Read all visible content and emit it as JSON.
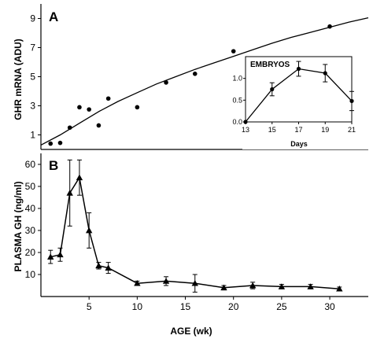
{
  "chart_data": [
    {
      "type": "scatter",
      "panel": "A",
      "ylabel": "GHR mRNA (ADU)",
      "xlim": [
        0,
        34
      ],
      "ylim": [
        0,
        10
      ],
      "yticks": [
        1,
        3,
        5,
        7,
        9
      ],
      "xticks": [],
      "grid": false,
      "series": [
        {
          "marker": "circle",
          "x": [
            1,
            2,
            3,
            4,
            5,
            6,
            7,
            10,
            13,
            16,
            20,
            30
          ],
          "y": [
            0.4,
            0.45,
            1.5,
            2.9,
            2.75,
            1.65,
            3.5,
            2.9,
            4.6,
            5.2,
            6.75,
            8.45
          ]
        }
      ],
      "fit_curve": {
        "x": [
          0,
          2,
          4,
          6,
          8,
          10,
          12,
          14,
          16,
          18,
          20,
          22,
          24,
          26,
          28,
          30,
          32,
          34
        ],
        "y": [
          0.3,
          1.0,
          1.8,
          2.6,
          3.3,
          3.9,
          4.5,
          5.0,
          5.5,
          5.95,
          6.4,
          6.85,
          7.3,
          7.7,
          8.05,
          8.4,
          8.75,
          9.05
        ]
      },
      "inset": {
        "type": "line",
        "title": "EMBRYOS",
        "xlabel": "Days",
        "xlim": [
          13,
          21
        ],
        "ylim": [
          0,
          1.5
        ],
        "xticks": [
          13,
          15,
          17,
          19,
          21
        ],
        "yticks": [
          0.0,
          0.5,
          1.0
        ],
        "x": [
          13,
          15,
          17,
          19,
          21
        ],
        "y": [
          0.0,
          0.75,
          1.22,
          1.12,
          0.48
        ],
        "error": [
          0,
          0.15,
          0.17,
          0.2,
          0.22
        ]
      }
    },
    {
      "type": "line",
      "panel": "B",
      "xlabel": "AGE (wk)",
      "ylabel": "PLASMA GH (ng/ml)",
      "xlim": [
        0,
        34
      ],
      "ylim": [
        0,
        65
      ],
      "xticks": [
        5,
        10,
        15,
        20,
        25,
        30
      ],
      "yticks": [
        10,
        20,
        30,
        40,
        50,
        60
      ],
      "grid": false,
      "series": [
        {
          "marker": "triangle",
          "x": [
            1,
            2,
            3,
            4,
            5,
            6,
            7,
            10,
            13,
            16,
            19,
            22,
            25,
            28,
            31
          ],
          "y": [
            18,
            19,
            47,
            54,
            30,
            14,
            13,
            6,
            7,
            6,
            4,
            5,
            4.5,
            4.5,
            3.5
          ],
          "error": [
            3,
            3,
            15,
            8,
            8,
            1.5,
            2.5,
            1,
            2,
            4,
            1,
            1.5,
            1,
            1,
            0.8
          ]
        }
      ]
    }
  ]
}
